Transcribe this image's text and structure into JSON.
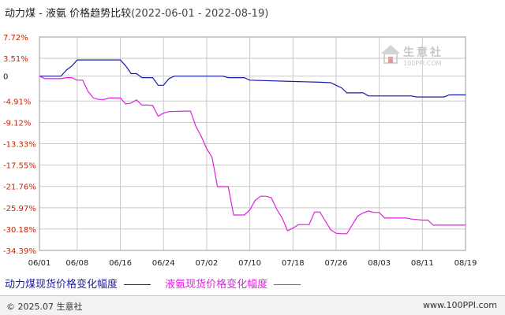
{
  "title": {
    "main": "动力煤 - 液氨 价格趋势比较",
    "dates": "(2022-06-01 - 2022-08-19)"
  },
  "chart_data": {
    "type": "line",
    "title": "动力煤 - 液氨 价格趋势比较(2022-06-01 - 2022-08-19)",
    "xlabel": "",
    "ylabel": "",
    "x_ticks": [
      "06/01",
      "06/08",
      "06/16",
      "06/24",
      "07/02",
      "07/10",
      "07/18",
      "07/26",
      "08/03",
      "08/11",
      "08/19"
    ],
    "y_ticks": [
      "7.72%",
      "3.51%",
      "0",
      "-4.91%",
      "-9.12%",
      "-13.33%",
      "-17.55%",
      "-21.76%",
      "-25.97%",
      "-30.18%",
      "-34.39%"
    ],
    "ylim": [
      -34.39,
      7.72
    ],
    "grid": true,
    "legend_placement": "bottom",
    "series": [
      {
        "name": "动力煤现货价格变化幅度",
        "color": "#1a1aaa",
        "points": [
          [
            "06/01",
            0
          ],
          [
            "06/05",
            0
          ],
          [
            "06/06",
            1.2
          ],
          [
            "06/07",
            2.0
          ],
          [
            "06/08",
            3.2
          ],
          [
            "06/16",
            3.2
          ],
          [
            "06/17",
            2.0
          ],
          [
            "06/18",
            0.5
          ],
          [
            "06/19",
            0.5
          ],
          [
            "06/20",
            -0.3
          ],
          [
            "06/22",
            -0.3
          ],
          [
            "06/23",
            -1.8
          ],
          [
            "06/24",
            -1.8
          ],
          [
            "06/25",
            -0.5
          ],
          [
            "06/26",
            0
          ],
          [
            "07/05",
            0
          ],
          [
            "07/06",
            -0.3
          ],
          [
            "07/09",
            -0.3
          ],
          [
            "07/10",
            -0.8
          ],
          [
            "07/23",
            -1.2
          ],
          [
            "07/25",
            -1.3
          ],
          [
            "07/26",
            -1.8
          ],
          [
            "07/27",
            -2.3
          ],
          [
            "07/28",
            -3.3
          ],
          [
            "07/31",
            -3.3
          ],
          [
            "08/01",
            -3.9
          ],
          [
            "08/09",
            -3.9
          ],
          [
            "08/10",
            -4.1
          ],
          [
            "08/15",
            -4.1
          ],
          [
            "08/16",
            -3.7
          ],
          [
            "08/19",
            -3.7
          ]
        ]
      },
      {
        "name": "液氨现货价格变化幅度",
        "color": "#e020e0",
        "points": [
          [
            "06/01",
            0
          ],
          [
            "06/02",
            -0.5
          ],
          [
            "06/04",
            -0.5
          ],
          [
            "06/05",
            -0.5
          ],
          [
            "06/06",
            -0.3
          ],
          [
            "06/07",
            -0.3
          ],
          [
            "06/08",
            -0.8
          ],
          [
            "06/09",
            -0.8
          ],
          [
            "06/10",
            -3.0
          ],
          [
            "06/11",
            -4.3
          ],
          [
            "06/12",
            -4.6
          ],
          [
            "06/13",
            -4.6
          ],
          [
            "06/14",
            -4.3
          ],
          [
            "06/16",
            -4.3
          ],
          [
            "06/17",
            -5.5
          ],
          [
            "06/18",
            -5.3
          ],
          [
            "06/19",
            -4.7
          ],
          [
            "06/20",
            -5.7
          ],
          [
            "06/21",
            -5.7
          ],
          [
            "06/22",
            -5.8
          ],
          [
            "06/23",
            -7.9
          ],
          [
            "06/24",
            -7.3
          ],
          [
            "06/25",
            -7.0
          ],
          [
            "06/28",
            -6.9
          ],
          [
            "06/29",
            -6.9
          ],
          [
            "06/30",
            -9.9
          ],
          [
            "07/01",
            -11.9
          ],
          [
            "07/02",
            -14.3
          ],
          [
            "07/03",
            -16.0
          ],
          [
            "07/04",
            -21.8
          ],
          [
            "07/06",
            -21.8
          ],
          [
            "07/07",
            -27.4
          ],
          [
            "07/09",
            -27.4
          ],
          [
            "07/10",
            -26.4
          ],
          [
            "07/11",
            -24.5
          ],
          [
            "07/12",
            -23.7
          ],
          [
            "07/13",
            -23.7
          ],
          [
            "07/14",
            -24.0
          ],
          [
            "07/15",
            -26.3
          ],
          [
            "07/16",
            -28.0
          ],
          [
            "07/17",
            -30.5
          ],
          [
            "07/18",
            -30.0
          ],
          [
            "07/19",
            -29.3
          ],
          [
            "07/21",
            -29.3
          ],
          [
            "07/22",
            -26.8
          ],
          [
            "07/23",
            -26.8
          ],
          [
            "07/24",
            -28.6
          ],
          [
            "07/25",
            -30.3
          ],
          [
            "07/26",
            -31.0
          ],
          [
            "07/27",
            -31.1
          ],
          [
            "07/28",
            -31.1
          ],
          [
            "07/30",
            -27.6
          ],
          [
            "07/31",
            -27.0
          ],
          [
            "08/01",
            -26.6
          ],
          [
            "08/02",
            -26.9
          ],
          [
            "08/03",
            -26.9
          ],
          [
            "08/04",
            -28.0
          ],
          [
            "08/08",
            -28.0
          ],
          [
            "08/09",
            -28.2
          ],
          [
            "08/10",
            -28.3
          ],
          [
            "08/11",
            -28.4
          ],
          [
            "08/12",
            -28.4
          ],
          [
            "08/13",
            -29.4
          ],
          [
            "08/19",
            -29.4
          ]
        ]
      }
    ]
  },
  "legend": {
    "coal_label": "动力煤现货价格变化幅度",
    "ammonia_label": "液氨现货价格变化幅度",
    "coal_color": "#1a1aaa",
    "ammonia_color": "#e020e0"
  },
  "watermark": {
    "name": "生意社",
    "url": "100PPI.COM",
    "icon": "house-logo-icon"
  },
  "footer": {
    "left": "© 2025.07 生意社",
    "right": "www.100PPI.com"
  },
  "colors": {
    "ytick": "#cc2200",
    "grid": "#c8c8c8"
  }
}
